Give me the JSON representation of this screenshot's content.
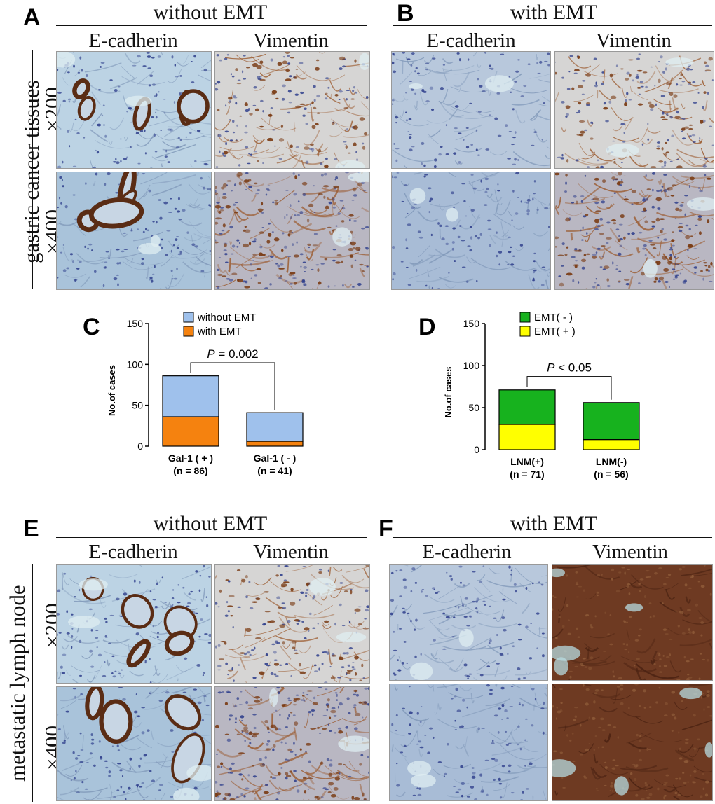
{
  "panels": {
    "A": {
      "letter": "A",
      "title": "without EMT",
      "columns": [
        "E-cadherin",
        "Vimentin"
      ]
    },
    "B": {
      "letter": "B",
      "title": "with EMT",
      "columns": [
        "E-cadherin",
        "Vimentin"
      ]
    },
    "C": {
      "letter": "C"
    },
    "D": {
      "letter": "D"
    },
    "E": {
      "letter": "E",
      "title": "without EMT",
      "columns": [
        "E-cadherin",
        "Vimentin"
      ]
    },
    "F": {
      "letter": "F",
      "title": "with EMT",
      "columns": [
        "E-cadherin",
        "Vimentin"
      ]
    }
  },
  "row_groups": {
    "top": {
      "label": "gastric cancer tissues",
      "mag1": "×200",
      "mag2": "×400"
    },
    "bottom": {
      "label": "metastatic lymph node",
      "mag1": "×200",
      "mag2": "×400"
    }
  },
  "micrographs": [
    {
      "id": "A-ecad-200",
      "stain": "brown-glands-blue-stroma",
      "tone": "light"
    },
    {
      "id": "A-vim-200",
      "stain": "brown-stroma",
      "tone": "light"
    },
    {
      "id": "A-ecad-400",
      "stain": "brown-glands-blue-stroma",
      "tone": "medium"
    },
    {
      "id": "A-vim-400",
      "stain": "brown-stroma",
      "tone": "dark"
    },
    {
      "id": "B-ecad-200",
      "stain": "blue-only",
      "tone": "light"
    },
    {
      "id": "B-vim-200",
      "stain": "brown-stroma",
      "tone": "light"
    },
    {
      "id": "B-ecad-400",
      "stain": "blue-only",
      "tone": "medium"
    },
    {
      "id": "B-vim-400",
      "stain": "brown-stroma",
      "tone": "dark"
    },
    {
      "id": "E-ecad-200",
      "stain": "brown-glands-blue-stroma",
      "tone": "light"
    },
    {
      "id": "E-vim-200",
      "stain": "brown-stroma",
      "tone": "medium"
    },
    {
      "id": "E-ecad-400",
      "stain": "brown-glands-blue-stroma",
      "tone": "medium"
    },
    {
      "id": "E-vim-400",
      "stain": "brown-stroma",
      "tone": "dark"
    },
    {
      "id": "F-ecad-200",
      "stain": "blue-only",
      "tone": "light"
    },
    {
      "id": "F-vim-200",
      "stain": "brown-dense",
      "tone": "dark"
    },
    {
      "id": "F-ecad-400",
      "stain": "blue-only",
      "tone": "medium"
    },
    {
      "id": "F-vim-400",
      "stain": "brown-dense",
      "tone": "dark"
    }
  ],
  "chart_data": [
    {
      "panel": "C",
      "type": "bar",
      "stacked": true,
      "categories": [
        "Gal-1 ( + )",
        "Gal-1 ( - )"
      ],
      "category_n": [
        "(n = 86)",
        "(n = 41)"
      ],
      "series": [
        {
          "name": "with EMT",
          "values": [
            36,
            6
          ],
          "color": "#f5820f"
        },
        {
          "name": "without EMT",
          "values": [
            50,
            35
          ],
          "color": "#9fc1ec"
        }
      ],
      "totals": [
        86,
        41
      ],
      "ylabel": "No.of cases",
      "ylim": [
        0,
        150
      ],
      "yticks": [
        0,
        50,
        100,
        150
      ],
      "legend": "top-right",
      "annotation": {
        "p_symbol": "P",
        "p_rest": " = 0.002"
      }
    },
    {
      "panel": "D",
      "type": "bar",
      "stacked": true,
      "categories": [
        "LNM(+)",
        "LNM(-)"
      ],
      "category_n": [
        "(n = 71)",
        "(n = 56)"
      ],
      "series": [
        {
          "name": "EMT( + )",
          "values": [
            30,
            12
          ],
          "color": "#ffff00"
        },
        {
          "name": "EMT( - )",
          "values": [
            41,
            44
          ],
          "color": "#17b21e"
        }
      ],
      "totals": [
        71,
        56
      ],
      "ylabel": "No.of cases",
      "ylim": [
        0,
        150
      ],
      "yticks": [
        0,
        50,
        100,
        150
      ],
      "legend": "top-right",
      "annotation": {
        "p_symbol": "P",
        "p_rest": " < 0.05"
      }
    }
  ]
}
